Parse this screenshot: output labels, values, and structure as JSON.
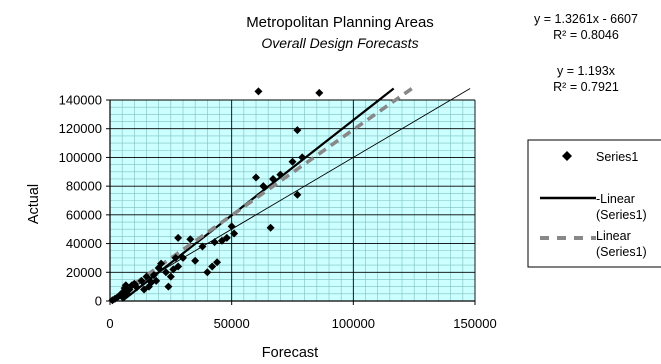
{
  "chart_data": {
    "type": "scatter",
    "title": "Metropolitan Planning Areas",
    "subtitle": "Overall Design Forecasts",
    "xlabel": "Forecast",
    "ylabel": "Actual",
    "xlim": [
      0,
      150000
    ],
    "ylim": [
      0,
      140000
    ],
    "x_ticks": [
      "0",
      "50000",
      "100000",
      "150000"
    ],
    "y_ticks": [
      "0",
      "20000",
      "40000",
      "60000",
      "80000",
      "100000",
      "120000",
      "140000"
    ],
    "grid": true,
    "legend_position": "right",
    "colors": {
      "plot_background": "#ccffff",
      "grid_major": "#000000",
      "grid_minor": "#7fbfbf",
      "points": "#000000",
      "fit_line_1": "#000000",
      "fit_line_2": "#888888"
    },
    "equations": [
      {
        "equation": "y = 1.3261x - 6607",
        "r2": "R² = 0.8046"
      },
      {
        "equation": "y = 1.193x",
        "r2": "R² = 0.7921"
      }
    ],
    "legend": [
      {
        "label": "Series1",
        "style": "marker"
      },
      {
        "label": "Linear (Series1)",
        "style": "solid"
      },
      {
        "label": "Linear (Series1)",
        "style": "dashed"
      }
    ],
    "series": [
      {
        "name": "Series1",
        "kind": "points",
        "points": [
          [
            1000,
            500
          ],
          [
            2000,
            1500
          ],
          [
            3000,
            2500
          ],
          [
            4000,
            4000
          ],
          [
            5000,
            3000
          ],
          [
            5500,
            6500
          ],
          [
            6000,
            9000
          ],
          [
            6500,
            11000
          ],
          [
            7000,
            5000
          ],
          [
            8000,
            8000
          ],
          [
            9000,
            11000
          ],
          [
            10000,
            12000
          ],
          [
            11000,
            9500
          ],
          [
            13000,
            14000
          ],
          [
            14000,
            8000
          ],
          [
            15000,
            17000
          ],
          [
            16000,
            10000
          ],
          [
            17000,
            13000
          ],
          [
            18000,
            18000
          ],
          [
            19000,
            14000
          ],
          [
            20000,
            23000
          ],
          [
            21000,
            26000
          ],
          [
            23000,
            20000
          ],
          [
            24000,
            10000
          ],
          [
            25000,
            17000
          ],
          [
            26000,
            22000
          ],
          [
            27000,
            30000
          ],
          [
            28000,
            24000
          ],
          [
            28000,
            44000
          ],
          [
            30000,
            30000
          ],
          [
            33000,
            43000
          ],
          [
            35000,
            28000
          ],
          [
            38000,
            38000
          ],
          [
            40000,
            20000
          ],
          [
            42000,
            24000
          ],
          [
            43000,
            41000
          ],
          [
            44000,
            27000
          ],
          [
            46000,
            42000
          ],
          [
            48000,
            44000
          ],
          [
            50000,
            52000
          ],
          [
            51000,
            47000
          ],
          [
            60000,
            86000
          ],
          [
            61000,
            146000
          ],
          [
            63000,
            80000
          ],
          [
            66000,
            51000
          ],
          [
            67000,
            85000
          ],
          [
            70000,
            88000
          ],
          [
            75000,
            97000
          ],
          [
            77000,
            119000
          ],
          [
            77000,
            74000
          ],
          [
            79000,
            100000
          ],
          [
            86000,
            145000
          ]
        ]
      },
      {
        "name": "Linear (Series1)",
        "kind": "line",
        "style": "solid",
        "slope": 1.3261,
        "intercept": -6607
      },
      {
        "name": "Linear (Series1)",
        "kind": "line",
        "style": "dashed",
        "slope": 1.193,
        "intercept": 0
      },
      {
        "name": "",
        "kind": "line",
        "style": "thin",
        "slope": 1.0,
        "intercept": 0
      }
    ]
  }
}
